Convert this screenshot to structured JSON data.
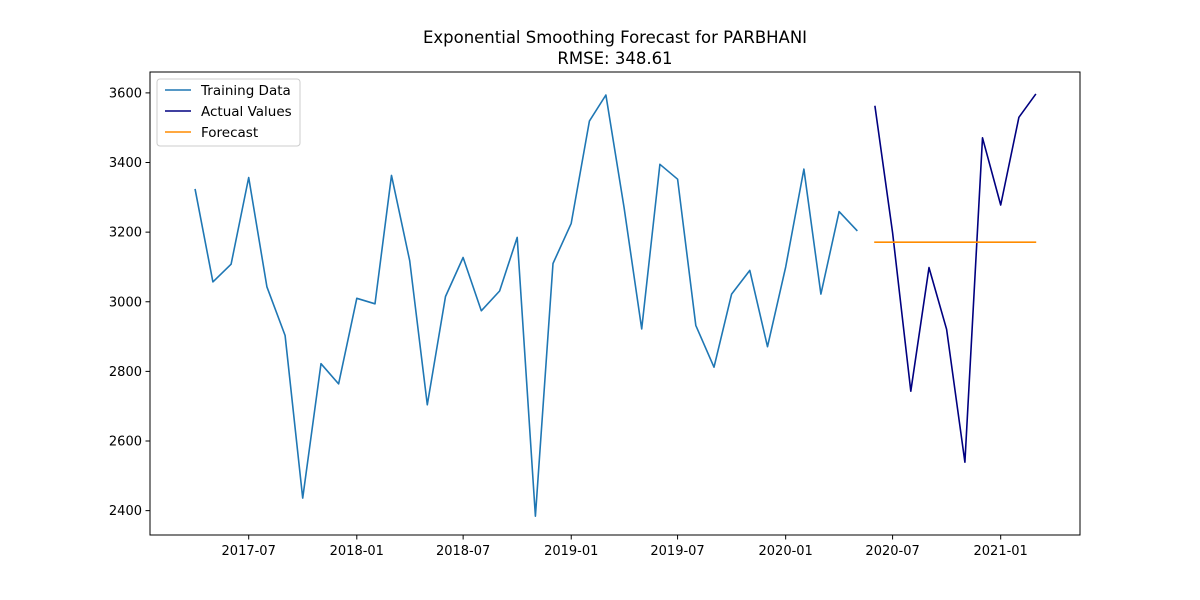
{
  "chart_data": {
    "type": "line",
    "title": "Exponential Smoothing Forecast for PARBHANI",
    "subtitle": "RMSE: 348.61",
    "xlabel": "",
    "ylabel": "",
    "xlim": [
      "2017-01-14",
      "2021-05-16"
    ],
    "ylim": [
      2330,
      3660
    ],
    "x_ticks": [
      {
        "date": "2017-07-01",
        "label": "2017-07"
      },
      {
        "date": "2018-01-01",
        "label": "2018-01"
      },
      {
        "date": "2018-07-01",
        "label": "2018-07"
      },
      {
        "date": "2019-01-01",
        "label": "2019-01"
      },
      {
        "date": "2019-07-01",
        "label": "2019-07"
      },
      {
        "date": "2020-01-01",
        "label": "2020-01"
      },
      {
        "date": "2020-07-01",
        "label": "2020-07"
      },
      {
        "date": "2021-01-01",
        "label": "2021-01"
      }
    ],
    "y_ticks": [
      2400,
      2600,
      2800,
      3000,
      3200,
      3400,
      3600
    ],
    "grid": false,
    "legend_position": "top-left",
    "series": [
      {
        "name": "Training Data",
        "color": "#1f77b4",
        "x": [
          "2017-04-01",
          "2017-05-01",
          "2017-06-01",
          "2017-07-01",
          "2017-08-01",
          "2017-09-01",
          "2017-10-01",
          "2017-11-01",
          "2017-12-01",
          "2018-01-01",
          "2018-02-01",
          "2018-03-01",
          "2018-04-01",
          "2018-05-01",
          "2018-06-01",
          "2018-07-01",
          "2018-08-01",
          "2018-09-01",
          "2018-10-01",
          "2018-11-01",
          "2018-12-01",
          "2019-01-01",
          "2019-02-01",
          "2019-03-01",
          "2019-04-01",
          "2019-05-01",
          "2019-06-01",
          "2019-07-01",
          "2019-08-01",
          "2019-09-01",
          "2019-10-01",
          "2019-11-01",
          "2019-12-01",
          "2020-01-01",
          "2020-02-01",
          "2020-03-01",
          "2020-04-01",
          "2020-05-01"
        ],
        "y": [
          3322,
          3057,
          3108,
          3357,
          3043,
          2903,
          2436,
          2822,
          2764,
          3010,
          2994,
          3363,
          3118,
          2704,
          3015,
          3127,
          2974,
          3031,
          3185,
          2384,
          3110,
          3225,
          3519,
          3594,
          3270,
          2922,
          3395,
          3352,
          2932,
          2812,
          3022,
          3090,
          2871,
          3100,
          3381,
          3022,
          3259,
          3205
        ]
      },
      {
        "name": "Actual Values",
        "color": "#000080",
        "x": [
          "2020-06-01",
          "2020-07-01",
          "2020-08-01",
          "2020-09-01",
          "2020-10-01",
          "2020-11-01",
          "2020-12-01",
          "2021-01-01",
          "2021-02-01",
          "2021-03-01"
        ],
        "y": [
          3561,
          3198,
          2743,
          3098,
          2921,
          2539,
          3471,
          3278,
          3530,
          3595
        ]
      },
      {
        "name": "Forecast",
        "color": "#ff8c00",
        "x": [
          "2020-06-01",
          "2020-07-01",
          "2020-08-01",
          "2020-09-01",
          "2020-10-01",
          "2020-11-01",
          "2020-12-01",
          "2021-01-01",
          "2021-02-01",
          "2021-03-01"
        ],
        "y": [
          3171,
          3171,
          3171,
          3171,
          3171,
          3171,
          3171,
          3171,
          3171,
          3171
        ]
      }
    ]
  }
}
